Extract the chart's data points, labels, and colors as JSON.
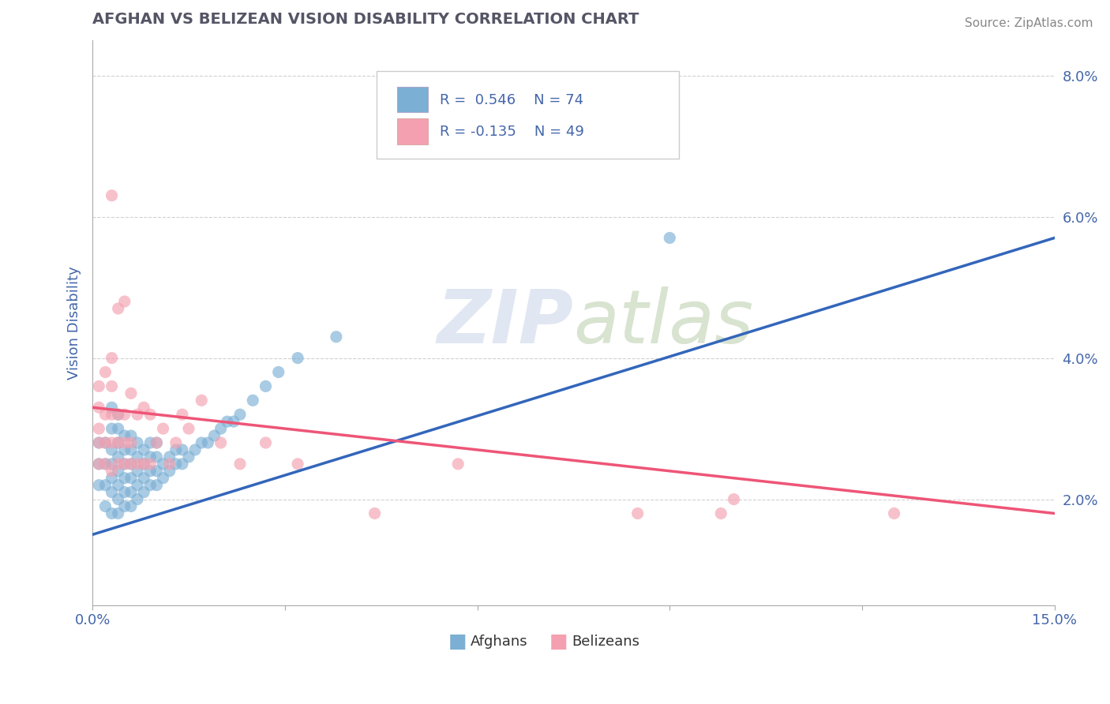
{
  "title": "AFGHAN VS BELIZEAN VISION DISABILITY CORRELATION CHART",
  "source": "Source: ZipAtlas.com",
  "ylabel": "Vision Disability",
  "xlim": [
    0.0,
    0.15
  ],
  "ylim": [
    0.005,
    0.085
  ],
  "xticks": [
    0.0,
    0.03,
    0.06,
    0.09,
    0.12,
    0.15
  ],
  "xtick_labels": [
    "0.0%",
    "",
    "",
    "",
    "",
    "15.0%"
  ],
  "yticks": [
    0.02,
    0.04,
    0.06,
    0.08
  ],
  "ytick_labels": [
    "2.0%",
    "4.0%",
    "6.0%",
    "8.0%"
  ],
  "blue_color": "#7BAFD4",
  "pink_color": "#F4A0B0",
  "blue_line_color": "#3366BB",
  "pink_line_color": "#EE5577",
  "R_blue": 0.546,
  "N_blue": 74,
  "R_pink": -0.135,
  "N_pink": 49,
  "legend_label_blue": "Afghans",
  "legend_label_pink": "Belizeans",
  "title_color": "#555566",
  "axis_label_color": "#4466AA",
  "tick_color": "#4466AA",
  "background_color": "#FFFFFF",
  "blue_line_start_y": 0.015,
  "blue_line_end_y": 0.057,
  "pink_line_start_y": 0.033,
  "pink_line_end_y": 0.018,
  "blue_scatter_x": [
    0.001,
    0.001,
    0.001,
    0.002,
    0.002,
    0.002,
    0.002,
    0.003,
    0.003,
    0.003,
    0.003,
    0.003,
    0.003,
    0.003,
    0.004,
    0.004,
    0.004,
    0.004,
    0.004,
    0.004,
    0.004,
    0.004,
    0.005,
    0.005,
    0.005,
    0.005,
    0.005,
    0.005,
    0.006,
    0.006,
    0.006,
    0.006,
    0.006,
    0.006,
    0.007,
    0.007,
    0.007,
    0.007,
    0.007,
    0.008,
    0.008,
    0.008,
    0.008,
    0.009,
    0.009,
    0.009,
    0.009,
    0.01,
    0.01,
    0.01,
    0.01,
    0.011,
    0.011,
    0.012,
    0.012,
    0.013,
    0.013,
    0.014,
    0.014,
    0.015,
    0.016,
    0.017,
    0.018,
    0.019,
    0.02,
    0.021,
    0.022,
    0.023,
    0.025,
    0.027,
    0.029,
    0.032,
    0.038,
    0.09
  ],
  "blue_scatter_y": [
    0.022,
    0.025,
    0.028,
    0.019,
    0.022,
    0.025,
    0.028,
    0.018,
    0.021,
    0.023,
    0.025,
    0.027,
    0.03,
    0.033,
    0.018,
    0.02,
    0.022,
    0.024,
    0.026,
    0.028,
    0.03,
    0.032,
    0.019,
    0.021,
    0.023,
    0.025,
    0.027,
    0.029,
    0.019,
    0.021,
    0.023,
    0.025,
    0.027,
    0.029,
    0.02,
    0.022,
    0.024,
    0.026,
    0.028,
    0.021,
    0.023,
    0.025,
    0.027,
    0.022,
    0.024,
    0.026,
    0.028,
    0.022,
    0.024,
    0.026,
    0.028,
    0.023,
    0.025,
    0.024,
    0.026,
    0.025,
    0.027,
    0.025,
    0.027,
    0.026,
    0.027,
    0.028,
    0.028,
    0.029,
    0.03,
    0.031,
    0.031,
    0.032,
    0.034,
    0.036,
    0.038,
    0.04,
    0.043,
    0.057
  ],
  "pink_scatter_x": [
    0.001,
    0.001,
    0.001,
    0.001,
    0.001,
    0.002,
    0.002,
    0.002,
    0.002,
    0.003,
    0.003,
    0.003,
    0.003,
    0.003,
    0.003,
    0.004,
    0.004,
    0.004,
    0.004,
    0.005,
    0.005,
    0.005,
    0.005,
    0.006,
    0.006,
    0.006,
    0.007,
    0.007,
    0.008,
    0.008,
    0.009,
    0.009,
    0.01,
    0.011,
    0.012,
    0.013,
    0.014,
    0.015,
    0.017,
    0.02,
    0.023,
    0.027,
    0.032,
    0.044,
    0.057,
    0.085,
    0.098,
    0.1,
    0.125
  ],
  "pink_scatter_y": [
    0.025,
    0.028,
    0.03,
    0.033,
    0.036,
    0.025,
    0.028,
    0.032,
    0.038,
    0.024,
    0.028,
    0.032,
    0.036,
    0.04,
    0.063,
    0.025,
    0.028,
    0.032,
    0.047,
    0.025,
    0.028,
    0.032,
    0.048,
    0.025,
    0.028,
    0.035,
    0.025,
    0.032,
    0.025,
    0.033,
    0.025,
    0.032,
    0.028,
    0.03,
    0.025,
    0.028,
    0.032,
    0.03,
    0.034,
    0.028,
    0.025,
    0.028,
    0.025,
    0.018,
    0.025,
    0.018,
    0.018,
    0.02,
    0.018
  ]
}
